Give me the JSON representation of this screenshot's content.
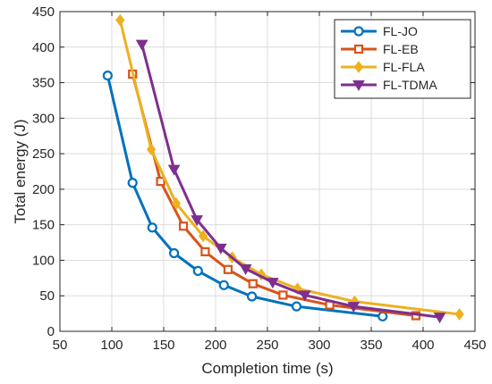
{
  "chart_data": {
    "type": "line",
    "xlabel": "Completion time (s)",
    "ylabel": "Total energy (J)",
    "xlim": [
      50,
      450
    ],
    "ylim": [
      0,
      450
    ],
    "xticks": [
      50,
      100,
      150,
      200,
      250,
      300,
      350,
      400,
      450
    ],
    "yticks": [
      0,
      50,
      100,
      150,
      200,
      250,
      300,
      350,
      400,
      450
    ],
    "grid": true,
    "legend_position": "top-right",
    "series": [
      {
        "name": "FL-JO",
        "color": "#0072BD",
        "marker": "circle",
        "x": [
          96,
          120,
          139,
          160,
          183,
          208,
          235,
          278,
          361
        ],
        "y": [
          360,
          209,
          146,
          110,
          85,
          65,
          49,
          35,
          21
        ]
      },
      {
        "name": "FL-EB",
        "color": "#D95319",
        "marker": "square",
        "x": [
          120,
          147,
          169,
          190,
          212,
          236,
          265,
          310,
          393
        ],
        "y": [
          362,
          211,
          148,
          112,
          87,
          67,
          51,
          37,
          22
        ]
      },
      {
        "name": "FL-FLA",
        "color": "#EDB120",
        "marker": "diamond",
        "x": [
          108,
          138,
          162,
          188,
          216,
          244,
          279,
          334,
          435
        ],
        "y": [
          438,
          256,
          180,
          134,
          104,
          80,
          60,
          42,
          24
        ]
      },
      {
        "name": "FL-TDMA",
        "color": "#7E2F8E",
        "marker": "triangle-down",
        "x": [
          129,
          160,
          182,
          205,
          229,
          255,
          286,
          333,
          416
        ],
        "y": [
          404,
          228,
          157,
          117,
          88,
          69,
          51,
          35,
          20
        ]
      }
    ]
  }
}
